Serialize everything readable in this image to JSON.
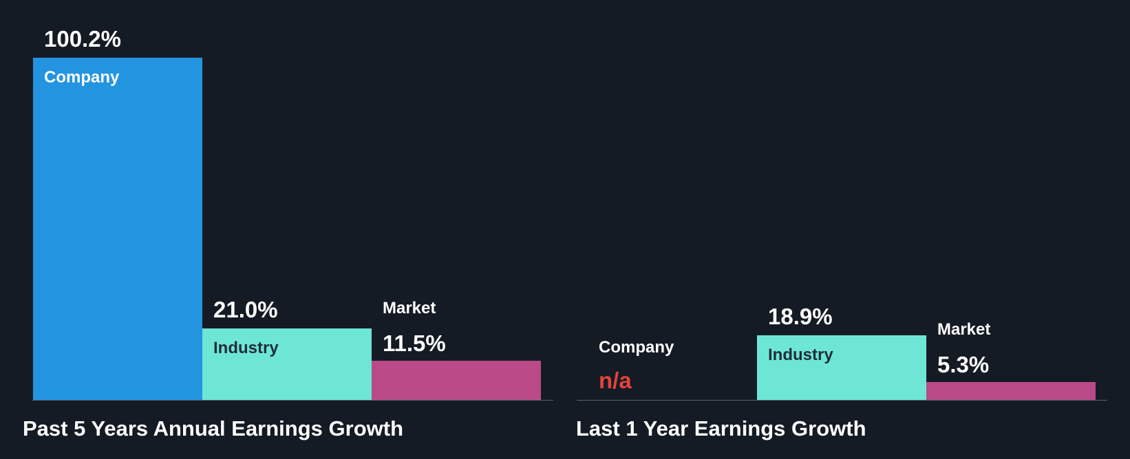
{
  "colors": {
    "background": "#151b24",
    "company": "#2394e0",
    "industry": "#6ee6d6",
    "market": "#b94a87",
    "label_on_light": "#1e2d3a",
    "na": "#e2433d"
  },
  "chart_data": [
    {
      "type": "bar",
      "title": "Past 5 Years Annual Earnings Growth",
      "categories": [
        "Company",
        "Industry",
        "Market"
      ],
      "values": [
        100.2,
        21.0,
        11.5
      ],
      "value_labels": [
        "100.2%",
        "21.0%",
        "11.5%"
      ],
      "unit": "%",
      "ylim": [
        0,
        100.2
      ],
      "legend": "none",
      "grid": false
    },
    {
      "type": "bar",
      "title": "Last 1 Year Earnings Growth",
      "categories": [
        "Company",
        "Industry",
        "Market"
      ],
      "values": [
        null,
        18.9,
        5.3
      ],
      "value_labels": [
        "n/a",
        "18.9%",
        "5.3%"
      ],
      "unit": "%",
      "ylim": [
        0,
        100.2
      ],
      "legend": "none",
      "grid": false
    }
  ]
}
